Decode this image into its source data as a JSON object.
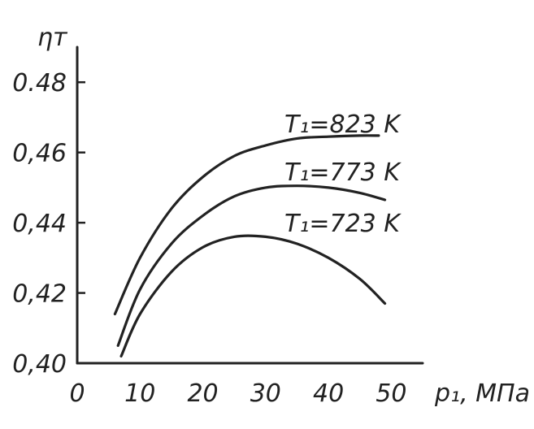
{
  "chart_data": {
    "type": "line",
    "ylabel": "ηт",
    "xlabel": "p₁, МПа",
    "xlim": [
      0,
      55
    ],
    "ylim": [
      0.4,
      0.49
    ],
    "x_ticks": [
      {
        "value": 0,
        "label": "0"
      },
      {
        "value": 10,
        "label": "10"
      },
      {
        "value": 20,
        "label": "20"
      },
      {
        "value": 30,
        "label": "30"
      },
      {
        "value": 40,
        "label": "40"
      },
      {
        "value": 50,
        "label": "50"
      }
    ],
    "y_ticks": [
      {
        "value": 0.4,
        "label": "0,40"
      },
      {
        "value": 0.42,
        "label": "0,42"
      },
      {
        "value": 0.44,
        "label": "0,44"
      },
      {
        "value": 0.46,
        "label": "0,46"
      },
      {
        "value": 0.48,
        "label": "0.48"
      }
    ],
    "grid": false,
    "series": [
      {
        "name": "T₁=823 K",
        "x": [
          6,
          10,
          15,
          20,
          25,
          30,
          35,
          40,
          45,
          48
        ],
        "y": [
          0.414,
          0.43,
          0.444,
          0.453,
          0.459,
          0.462,
          0.464,
          0.4645,
          0.4648,
          0.4648
        ]
      },
      {
        "name": "T₁=773 K",
        "x": [
          6.5,
          10,
          15,
          20,
          25,
          30,
          35,
          40,
          45,
          49
        ],
        "y": [
          0.405,
          0.421,
          0.434,
          0.442,
          0.4475,
          0.45,
          0.4505,
          0.45,
          0.4485,
          0.4465
        ]
      },
      {
        "name": "T₁=723 K",
        "x": [
          7,
          10,
          15,
          20,
          25,
          30,
          35,
          40,
          45,
          49
        ],
        "y": [
          0.402,
          0.414,
          0.426,
          0.433,
          0.436,
          0.436,
          0.434,
          0.43,
          0.424,
          0.417
        ]
      }
    ]
  }
}
